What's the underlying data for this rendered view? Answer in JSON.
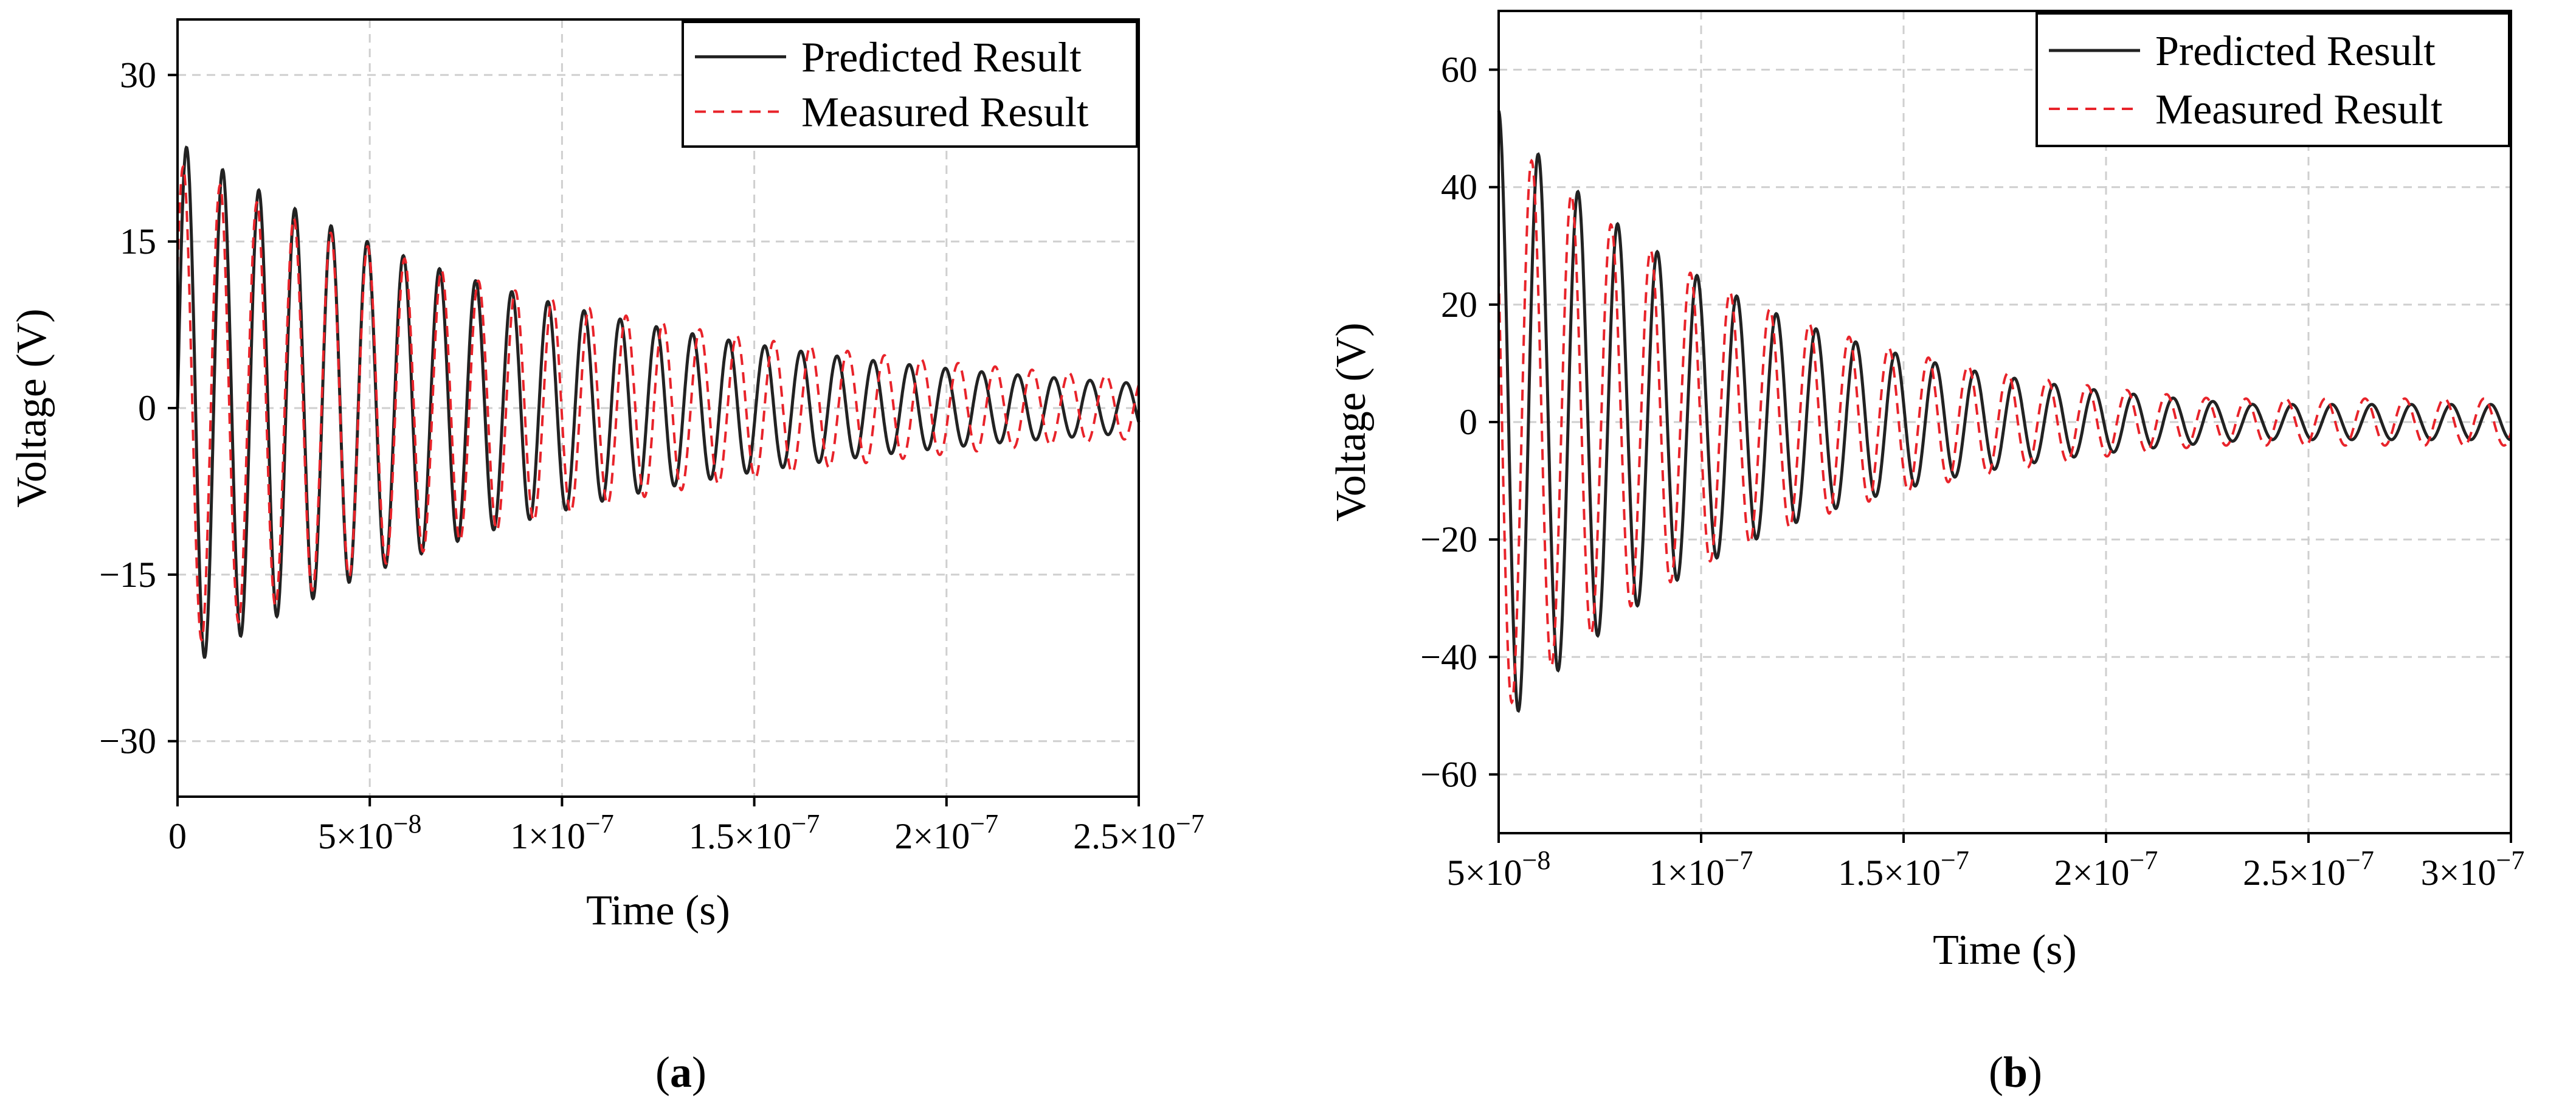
{
  "chart_data": [
    {
      "type": "line",
      "panel_label": "a",
      "xlabel": "Time (s)",
      "ylabel": "Voltage (V)",
      "xlim": [
        0,
        2.5e-07
      ],
      "ylim": [
        -35,
        35
      ],
      "x_ticks": [
        0,
        5e-08,
        1e-07,
        1.5e-07,
        2e-07,
        2.5e-07
      ],
      "x_tick_labels": [
        "0",
        "5×10−8",
        "1×10−7",
        "1.5×10−7",
        "2×10−7",
        "2.5×10−7"
      ],
      "y_ticks": [
        -30,
        -15,
        0,
        15,
        30
      ],
      "y_tick_labels": [
        "−30",
        "−15",
        "0",
        "15",
        "30"
      ],
      "grid": true,
      "legend": "top-right",
      "series": [
        {
          "name": "Predicted Result",
          "style": "solid",
          "color": "#222222",
          "x_start": 0,
          "x_end": 2.5e-07,
          "period": 9.4e-09,
          "amplitude": 24,
          "decay_tau": 1.05e-07,
          "phase_deg": 0
        },
        {
          "name": "Measured Result",
          "style": "dashed",
          "color": "#e8232a",
          "x_start": 0,
          "x_end": 2.5e-07,
          "period": 9.6e-09,
          "amplitude": 22,
          "decay_tau": 1.2e-07,
          "phase_deg": 35
        }
      ]
    },
    {
      "type": "line",
      "panel_label": "b",
      "xlabel": "Time (s)",
      "ylabel": "Voltage (V)",
      "xlim": [
        5e-08,
        3e-07
      ],
      "ylim": [
        -70,
        70
      ],
      "x_ticks": [
        5e-08,
        1e-07,
        1.5e-07,
        2e-07,
        2.5e-07,
        3e-07
      ],
      "x_tick_labels": [
        "5×10−8",
        "1×10−7",
        "1.5×10−7",
        "2×10−7",
        "2.5×10−7",
        "3×10−7"
      ],
      "y_ticks": [
        -60,
        -40,
        -20,
        0,
        20,
        40,
        60
      ],
      "y_tick_labels": [
        "−60",
        "−40",
        "−20",
        "0",
        "20",
        "40",
        "60"
      ],
      "grid": true,
      "legend": "top-right",
      "series": [
        {
          "name": "Predicted Result",
          "style": "solid",
          "color": "#222222",
          "x_start": 5e-08,
          "x_end": 3e-07,
          "period": 9.8e-09,
          "amplitude": 53,
          "decay_tau": 6.5e-08,
          "decay_floor": 3,
          "phase_deg": 90
        },
        {
          "name": "Measured Result",
          "style": "dashed",
          "color": "#e8232a",
          "x_start": 5e-08,
          "x_end": 3e-07,
          "period": 9.8e-09,
          "amplitude": 50,
          "decay_tau": 7e-08,
          "decay_floor": 4,
          "phase_deg": 150
        }
      ]
    }
  ],
  "captions": {
    "a": "a",
    "b": "b"
  }
}
